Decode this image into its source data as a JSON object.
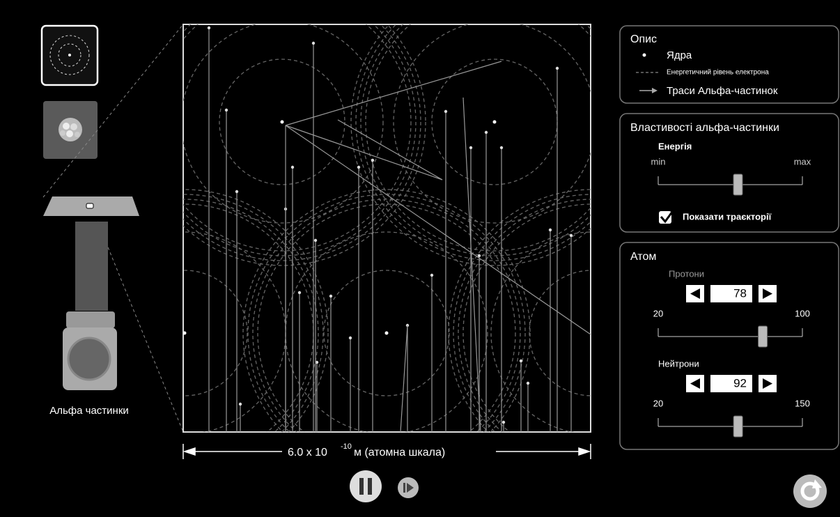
{
  "gun_label": "Альфа частинки",
  "scale": {
    "number": "6.0 x 10",
    "exponent": "-10",
    "unit": " м (атомна шкала)"
  },
  "legend": {
    "title": "Опис",
    "items": [
      "Ядра",
      "Енергетичний рівень електрона",
      "Траси Альфа-частинок"
    ]
  },
  "alpha": {
    "title": "Властивості альфа-частинки",
    "energy_label": "Енергія",
    "min_label": "min",
    "max_label": "max",
    "show_traces": "Показати траєкторії"
  },
  "atom": {
    "title": "Атом",
    "protons": {
      "label": "Протони",
      "value": 78,
      "min": 20,
      "max": 100
    },
    "neutrons": {
      "label": "Нейтрони",
      "value": 92,
      "min": 20,
      "max": 150
    }
  }
}
